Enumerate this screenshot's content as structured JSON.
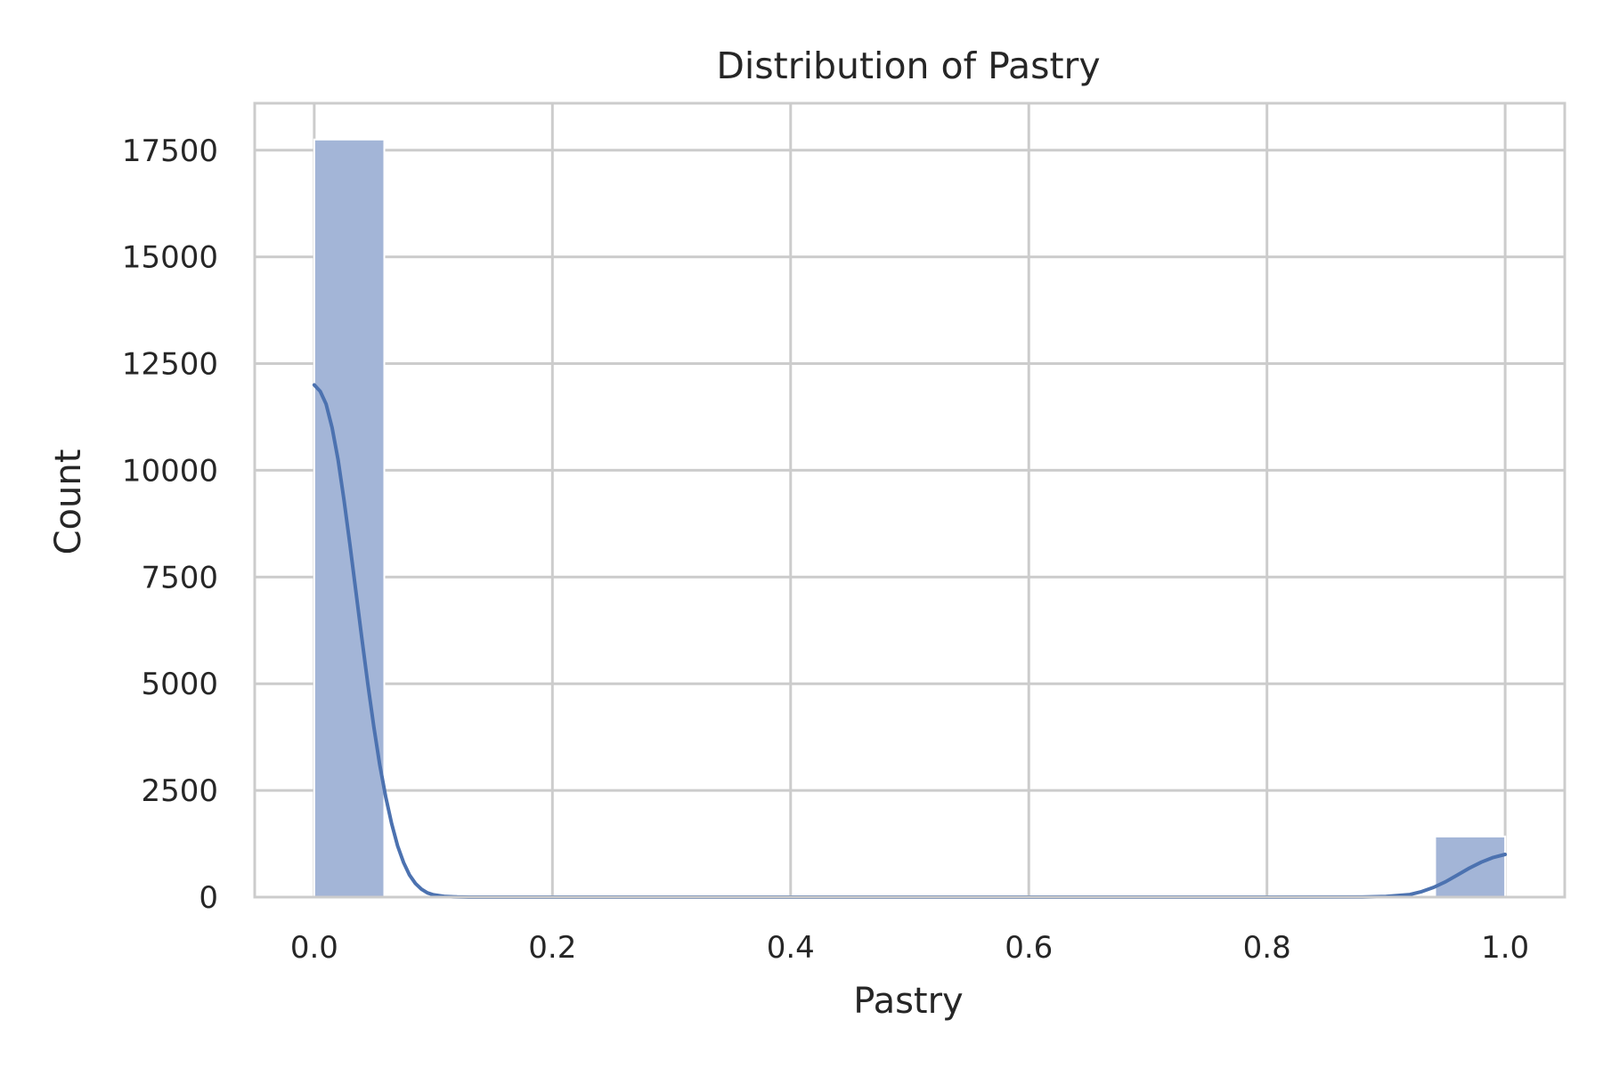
{
  "chart_data": {
    "type": "bar",
    "title": "Distribution of Pastry",
    "xlabel": "Pastry",
    "ylabel": "Count",
    "xlim": [
      -0.05,
      1.05
    ],
    "ylim": [
      0,
      18600
    ],
    "grid": true,
    "x_ticks": [
      "0.0",
      "0.2",
      "0.4",
      "0.6",
      "0.8",
      "1.0"
    ],
    "x_tick_values": [
      0.0,
      0.2,
      0.4,
      0.6,
      0.8,
      1.0
    ],
    "y_ticks": [
      "0",
      "2500",
      "5000",
      "7500",
      "10000",
      "12500",
      "15000",
      "17500"
    ],
    "y_tick_values": [
      0,
      2500,
      5000,
      7500,
      10000,
      12500,
      15000,
      17500
    ],
    "bins": [
      {
        "x0": 0.0,
        "x1": 0.0588,
        "count": 17750
      },
      {
        "x0": 0.9412,
        "x1": 1.0,
        "count": 1420
      }
    ],
    "kde": {
      "x": [
        0.0,
        0.005,
        0.01,
        0.015,
        0.02,
        0.025,
        0.03,
        0.035,
        0.04,
        0.045,
        0.05,
        0.055,
        0.06,
        0.065,
        0.07,
        0.075,
        0.08,
        0.085,
        0.09,
        0.095,
        0.1,
        0.11,
        0.12,
        0.13,
        0.15,
        0.2,
        0.4,
        0.6,
        0.8,
        0.88,
        0.9,
        0.92,
        0.93,
        0.94,
        0.95,
        0.96,
        0.97,
        0.98,
        0.99,
        1.0
      ],
      "y": [
        12000,
        11850,
        11550,
        11000,
        10250,
        9300,
        8250,
        7150,
        6050,
        5000,
        4000,
        3100,
        2350,
        1720,
        1200,
        810,
        520,
        320,
        185,
        100,
        55,
        15,
        4,
        1,
        0,
        0,
        0,
        0,
        0,
        2,
        15,
        60,
        130,
        230,
        360,
        520,
        680,
        820,
        930,
        1000
      ]
    },
    "colors": {
      "bar": "#a3b5d7",
      "kde": "#4c72b0",
      "grid": "#cccccc",
      "frame": "#cccccc"
    }
  }
}
